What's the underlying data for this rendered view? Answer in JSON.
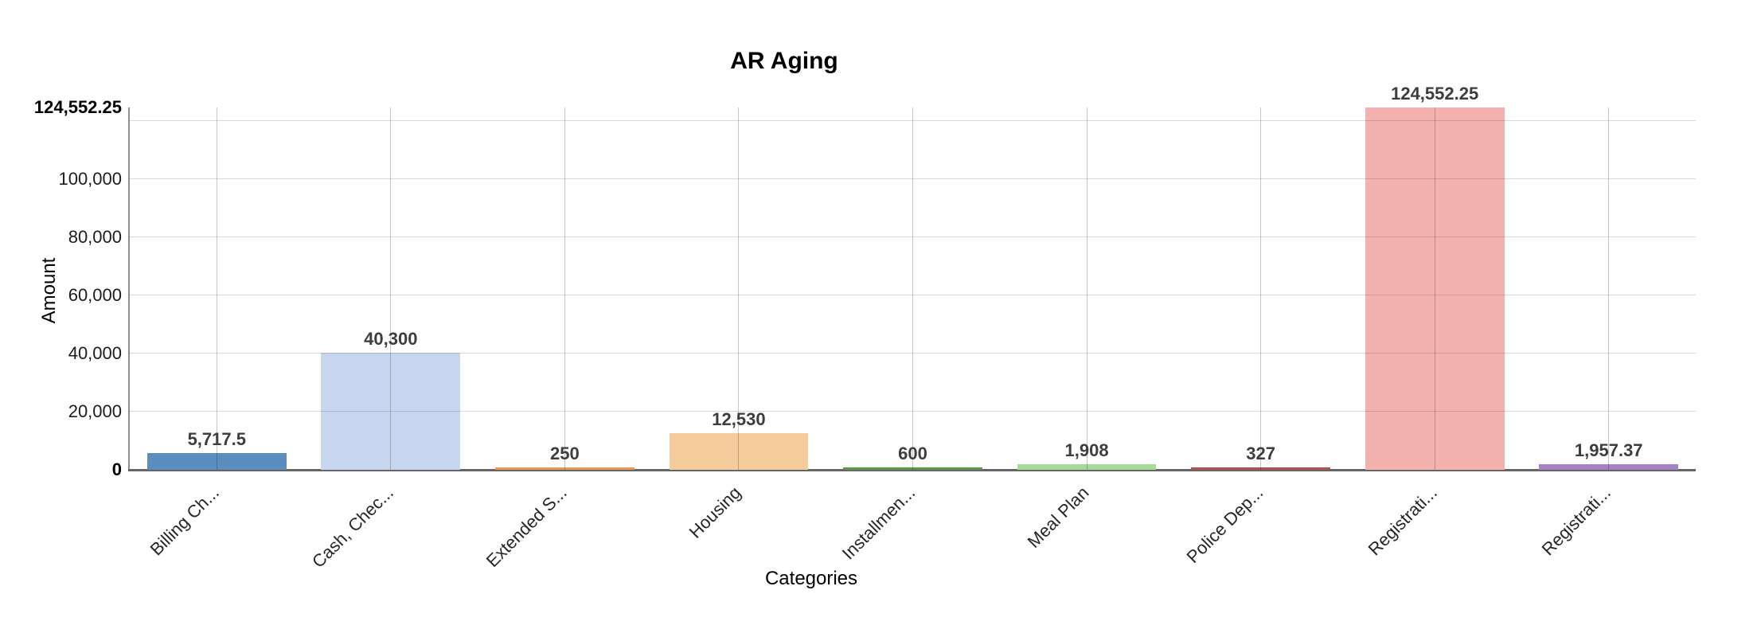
{
  "chart_data": {
    "type": "bar",
    "title": "AR Aging",
    "xlabel": "Categories",
    "ylabel": "Amount",
    "categories": [
      "Billing Ch...",
      "Cash, Chec...",
      "Extended S...",
      "Housing",
      "Installmen...",
      "Meal Plan",
      "Police Dep...",
      "Registrati...",
      "Registrati..."
    ],
    "values": [
      5717.5,
      40300,
      250,
      12530,
      600,
      1908,
      327,
      124552.25,
      1957.37
    ],
    "value_labels": [
      "5,717.5",
      "40,300",
      "250",
      "12,530",
      "600",
      "1,908",
      "327",
      "124,552.25",
      "1,957.37"
    ],
    "bar_colors": [
      "#5b8dbe",
      "#c7d5ee",
      "#e59c56",
      "#f5cc9b",
      "#579b48",
      "#a7da96",
      "#b2524c",
      "#f4b2af",
      "#a383c6"
    ],
    "ylim": [
      0,
      124552.25
    ],
    "y_ticks": [
      {
        "value": 0,
        "label": "0",
        "bold": true
      },
      {
        "value": 20000,
        "label": "20,000",
        "bold": false
      },
      {
        "value": 40000,
        "label": "40,000",
        "bold": false
      },
      {
        "value": 60000,
        "label": "60,000",
        "bold": false
      },
      {
        "value": 80000,
        "label": "80,000",
        "bold": false
      },
      {
        "value": 100000,
        "label": "100,000",
        "bold": false
      },
      {
        "value": 124552.25,
        "label": "124,552.25",
        "bold": true
      }
    ],
    "gridlines": [
      20000,
      40000,
      60000,
      80000,
      100000,
      120000
    ],
    "grid": true,
    "legend": false
  }
}
